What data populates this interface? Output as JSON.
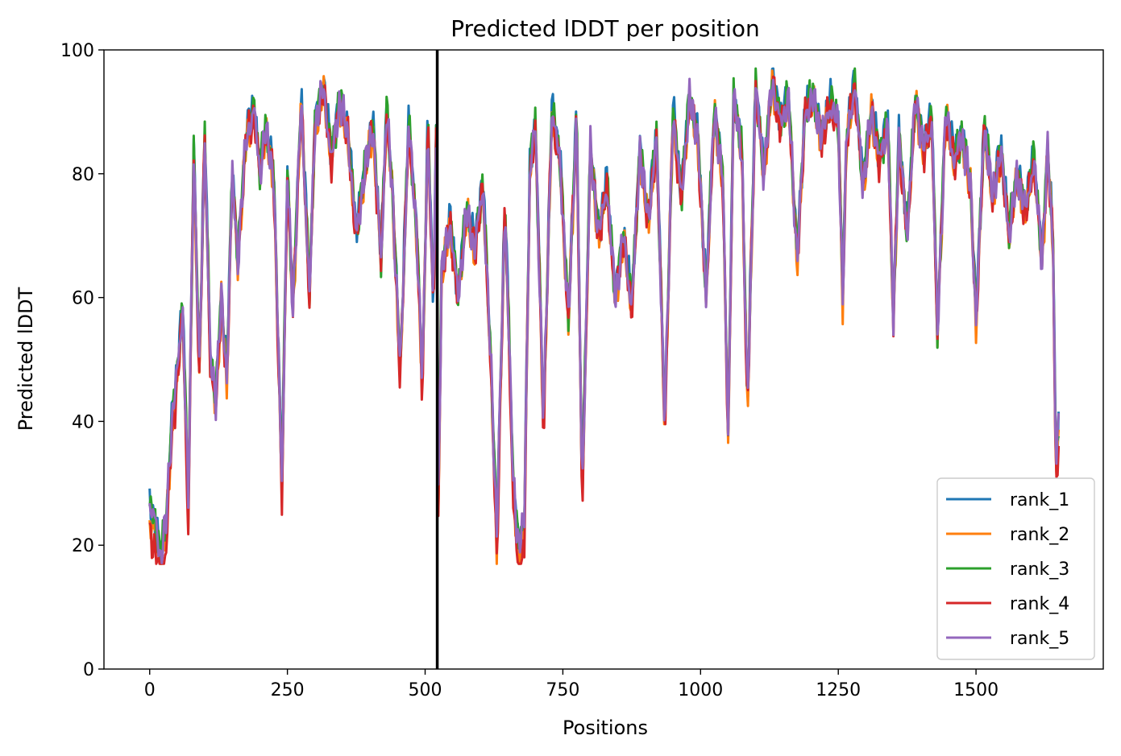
{
  "chart_data": {
    "type": "line",
    "title": "Predicted lDDT per position",
    "xlabel": "Positions",
    "ylabel": "Predicted lDDT",
    "xlim": [
      -83,
      1731
    ],
    "ylim": [
      0,
      100
    ],
    "xticks": [
      0,
      250,
      500,
      750,
      1000,
      1250,
      1500
    ],
    "yticks": [
      0,
      20,
      40,
      60,
      80,
      100
    ],
    "grid": false,
    "legend_position": "bottom-right",
    "vline": {
      "x": 522,
      "color": "#000000"
    },
    "series": [
      {
        "name": "rank_1",
        "color": "#1f77b4",
        "offset": 1.0,
        "dip": 1.0
      },
      {
        "name": "rank_2",
        "color": "#ff7f0e",
        "offset": -0.6,
        "dip": 1.5
      },
      {
        "name": "rank_3",
        "color": "#2ca02c",
        "offset": 0.6,
        "dip": 0.5
      },
      {
        "name": "rank_4",
        "color": "#d62728",
        "offset": -0.4,
        "dip": 4.5
      },
      {
        "name": "rank_5",
        "color": "#9467bd",
        "offset": 0.0,
        "dip": 0.0
      }
    ],
    "profile": {
      "x": [
        0,
        10,
        20,
        30,
        40,
        50,
        60,
        70,
        80,
        90,
        100,
        110,
        120,
        130,
        140,
        150,
        160,
        175,
        190,
        200,
        210,
        225,
        240,
        250,
        260,
        275,
        290,
        300,
        315,
        330,
        345,
        360,
        375,
        390,
        405,
        420,
        430,
        440,
        455,
        470,
        485,
        495,
        505,
        515,
        521,
        523,
        530,
        545,
        560,
        575,
        590,
        605,
        620,
        630,
        645,
        660,
        670,
        680,
        690,
        700,
        715,
        730,
        745,
        760,
        775,
        785,
        800,
        815,
        830,
        845,
        860,
        875,
        890,
        905,
        920,
        935,
        950,
        965,
        980,
        995,
        1010,
        1025,
        1040,
        1050,
        1060,
        1075,
        1085,
        1100,
        1115,
        1130,
        1145,
        1160,
        1175,
        1190,
        1205,
        1220,
        1235,
        1250,
        1258,
        1265,
        1280,
        1295,
        1310,
        1325,
        1340,
        1350,
        1360,
        1375,
        1390,
        1405,
        1420,
        1430,
        1445,
        1460,
        1475,
        1490,
        1500,
        1515,
        1530,
        1545,
        1560,
        1575,
        1590,
        1605,
        1620,
        1630,
        1640,
        1645,
        1650
      ],
      "y": [
        26,
        24,
        18,
        24,
        40,
        48,
        58,
        26,
        84,
        48,
        86,
        50,
        44,
        60,
        47,
        80,
        66,
        86,
        90,
        80,
        87,
        80,
        30,
        80,
        58,
        92,
        60,
        88,
        94,
        82,
        92,
        86,
        70,
        80,
        88,
        66,
        90,
        78,
        48,
        88,
        70,
        46,
        88,
        58,
        92,
        22,
        64,
        72,
        60,
        74,
        68,
        78,
        48,
        22,
        75,
        30,
        20,
        24,
        80,
        88,
        40,
        90,
        82,
        56,
        90,
        28,
        84,
        70,
        78,
        60,
        70,
        58,
        84,
        72,
        86,
        40,
        90,
        76,
        92,
        86,
        60,
        90,
        80,
        38,
        92,
        84,
        42,
        94,
        80,
        95,
        88,
        92,
        66,
        90,
        92,
        86,
        91,
        88,
        60,
        86,
        94,
        78,
        90,
        82,
        88,
        56,
        86,
        70,
        92,
        84,
        88,
        54,
        90,
        82,
        86,
        78,
        56,
        88,
        76,
        84,
        70,
        80,
        74,
        82,
        66,
        84,
        68,
        32,
        40
      ]
    }
  }
}
